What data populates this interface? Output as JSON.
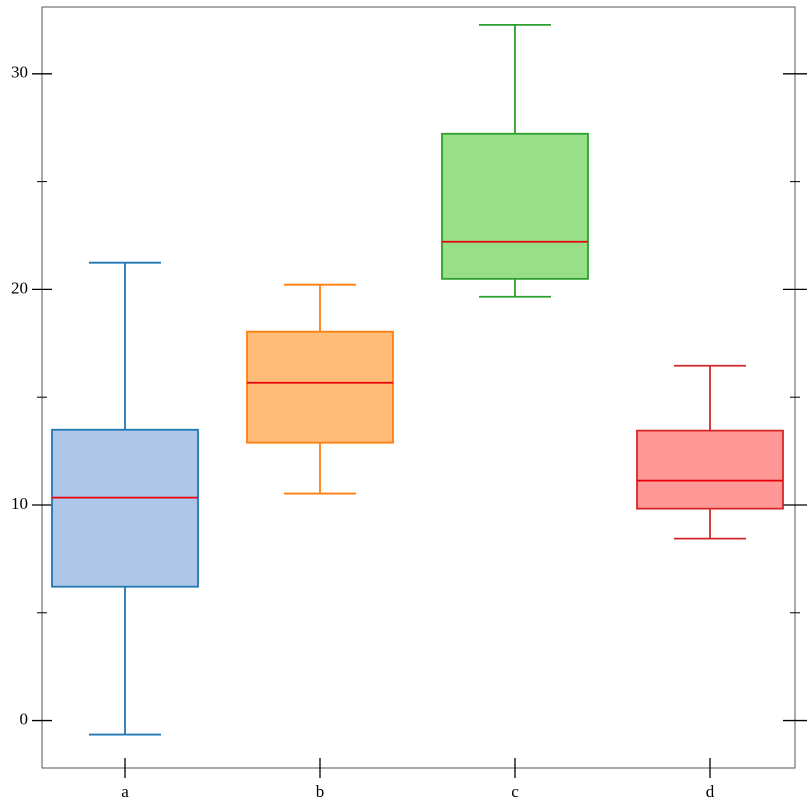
{
  "chart_data": {
    "type": "box",
    "categories": [
      "a",
      "b",
      "c",
      "d"
    ],
    "boxes": [
      {
        "whislo": -0.65,
        "q1": 6.21,
        "median": 10.34,
        "q3": 13.49,
        "whishi": 21.24,
        "color": "#1f77b4",
        "fill": "#aec7e8"
      },
      {
        "whislo": 10.53,
        "q1": 12.89,
        "median": 15.67,
        "q3": 18.04,
        "whishi": 20.22,
        "color": "#ff7f0e",
        "fill": "#ffbb78"
      },
      {
        "whislo": 19.66,
        "q1": 20.49,
        "median": 22.21,
        "q3": 27.22,
        "whishi": 32.27,
        "color": "#2ca02c",
        "fill": "#98df8a"
      },
      {
        "whislo": 8.44,
        "q1": 9.83,
        "median": 11.13,
        "q3": 13.45,
        "whishi": 16.46,
        "color": "#d62728",
        "fill": "#ff9896"
      }
    ],
    "median_color": "#e8000b",
    "ylim": [
      -2.2,
      33.1
    ],
    "yticks": [
      0,
      10,
      20,
      30
    ],
    "minor_yticks": [
      5,
      15,
      25
    ]
  }
}
